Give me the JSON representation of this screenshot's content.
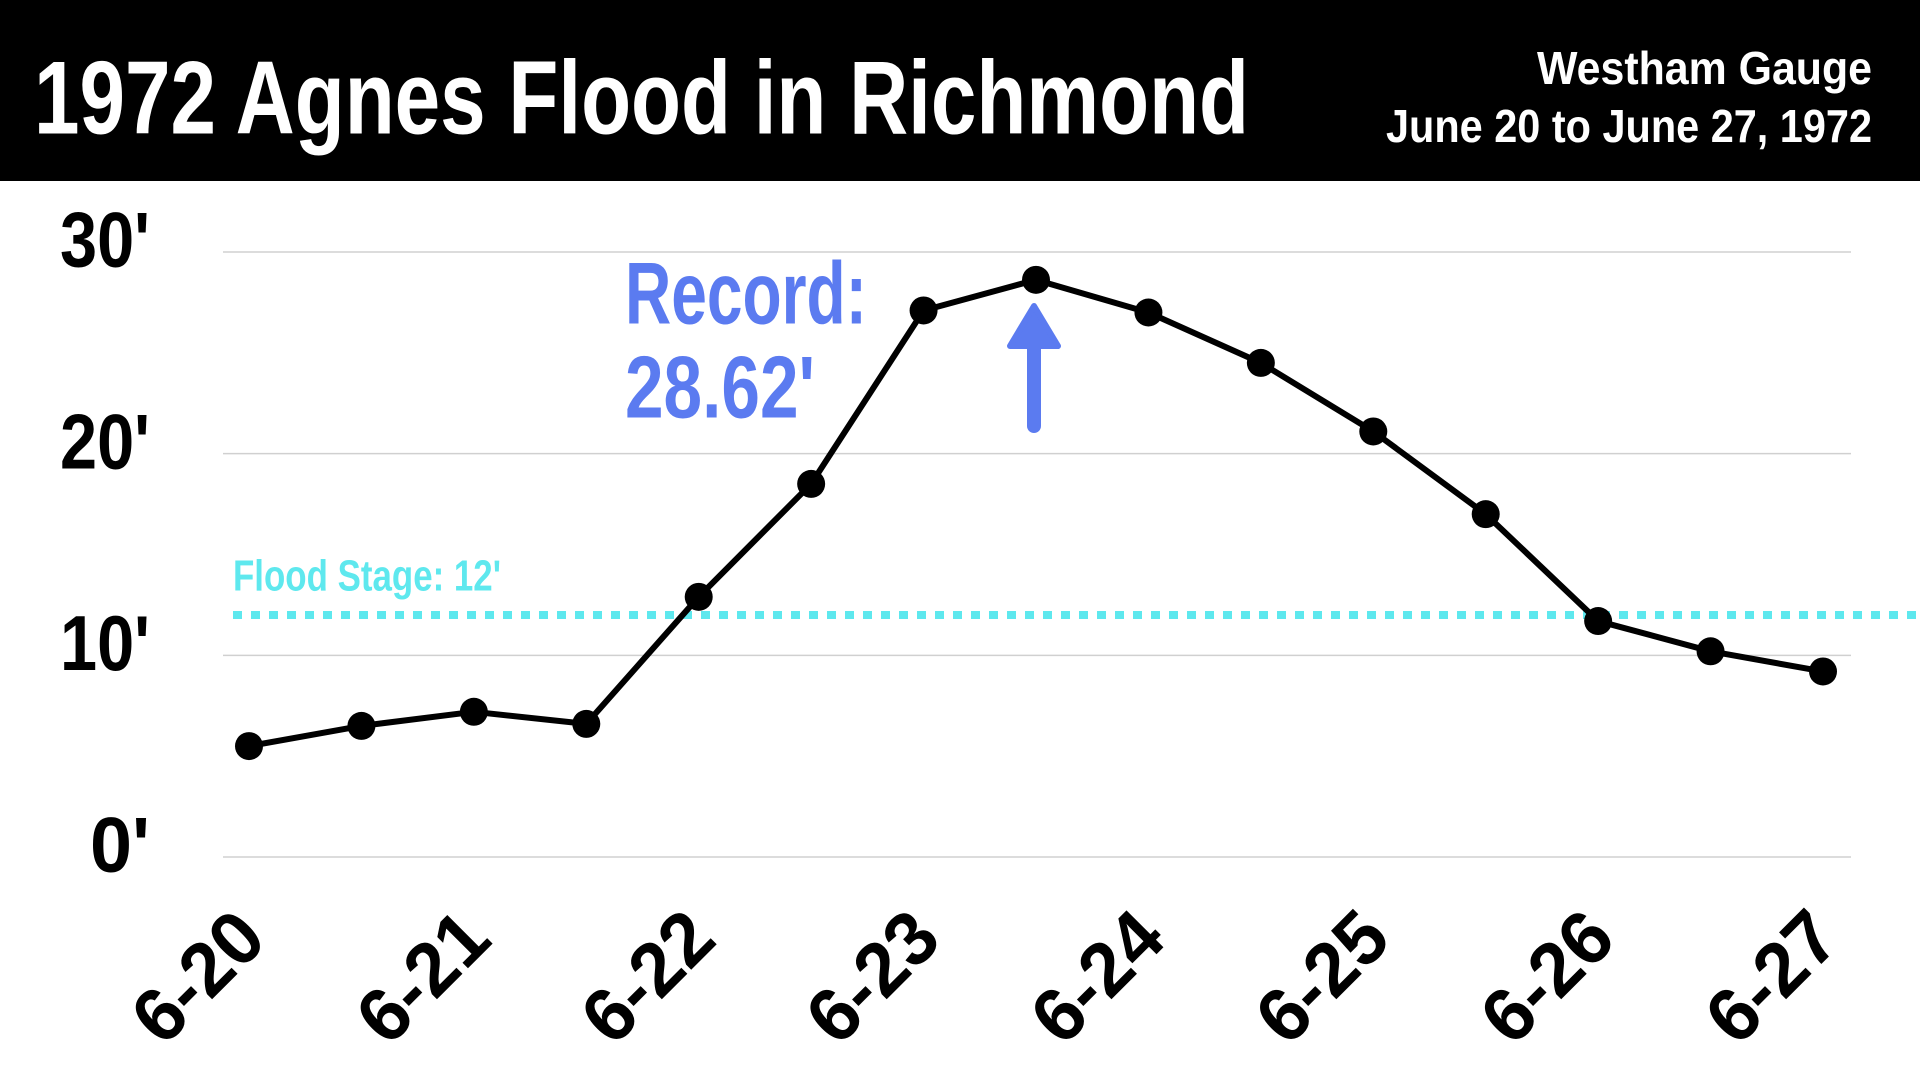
{
  "chart_data": {
    "type": "line",
    "title": "1972 Agnes Flood in Richmond",
    "subtitle": [
      "Westham Gauge",
      "June 20 to June 27, 1972"
    ],
    "categories": [
      "6-20",
      null,
      "6-21",
      null,
      "6-22",
      null,
      "6-23",
      null,
      "6-24",
      null,
      "6-25",
      null,
      "6-26",
      null,
      "6-27"
    ],
    "values": [
      5.5,
      6.5,
      7.2,
      6.6,
      12.9,
      18.5,
      27.1,
      28.62,
      27.0,
      24.5,
      21.1,
      17.0,
      11.7,
      10.2,
      9.2
    ],
    "color": "#000000",
    "ylim": [
      0,
      30
    ],
    "yticks": [
      {
        "value": 0,
        "label": "0'"
      },
      {
        "value": 10,
        "label": "10'"
      },
      {
        "value": 20,
        "label": "20'"
      },
      {
        "value": 30,
        "label": "30'"
      }
    ],
    "grid": true,
    "flood_stage": {
      "value": 12,
      "label": "Flood Stage: 12'",
      "color": "#5ee8ee"
    },
    "record_annotation": {
      "lines": [
        "Record:",
        "28.62'"
      ],
      "color": "#5b7bf0"
    }
  }
}
